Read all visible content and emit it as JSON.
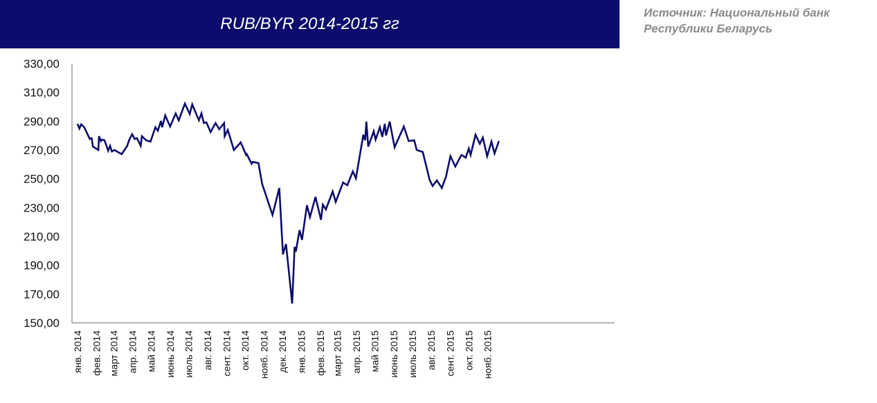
{
  "chart_data": {
    "type": "line",
    "title": "RUB/BYR 2014-2015 гг",
    "source": "Источник: Национальный банк Республики Беларусь",
    "xlabel": "",
    "ylabel": "",
    "ylim": [
      150,
      330
    ],
    "yticks": [
      "150,00",
      "170,00",
      "190,00",
      "210,00",
      "230,00",
      "250,00",
      "270,00",
      "290,00",
      "310,00",
      "330,00"
    ],
    "xticks": [
      {
        "date": "2014-01-01",
        "label": "янв. 2014"
      },
      {
        "date": "2014-02-01",
        "label": "фев. 2014"
      },
      {
        "date": "2014-03-01",
        "label": "март 2014"
      },
      {
        "date": "2014-04-01",
        "label": "апр. 2014"
      },
      {
        "date": "2014-05-01",
        "label": "май 2014"
      },
      {
        "date": "2014-06-01",
        "label": "июнь 2014"
      },
      {
        "date": "2014-07-01",
        "label": "июль 2014"
      },
      {
        "date": "2014-08-01",
        "label": "авг. 2014"
      },
      {
        "date": "2014-09-01",
        "label": "сент. 2014"
      },
      {
        "date": "2014-10-01",
        "label": "окт. 2014"
      },
      {
        "date": "2014-11-01",
        "label": "нояб. 2014"
      },
      {
        "date": "2014-12-01",
        "label": "дек. 2014"
      },
      {
        "date": "2015-01-01",
        "label": "янв. 2015"
      },
      {
        "date": "2015-02-01",
        "label": "фев. 2015"
      },
      {
        "date": "2015-03-01",
        "label": "март 2015"
      },
      {
        "date": "2015-04-01",
        "label": "апр. 2015"
      },
      {
        "date": "2015-05-01",
        "label": "май 2015"
      },
      {
        "date": "2015-06-01",
        "label": "июнь 2015"
      },
      {
        "date": "2015-07-01",
        "label": "июль 2015"
      },
      {
        "date": "2015-08-01",
        "label": "авг. 2015"
      },
      {
        "date": "2015-09-01",
        "label": "сент. 2015"
      },
      {
        "date": "2015-10-01",
        "label": "окт. 2015"
      },
      {
        "date": "2015-11-01",
        "label": "нояб. 2015"
      }
    ],
    "grid": false,
    "legend": "none",
    "colors": {
      "line": "#0c0c6c",
      "title_bg": "#0c0c6c",
      "source_text": "#8a8a8a"
    },
    "series": [
      {
        "points": [
          [
            "2014-01-01",
            288.2
          ],
          [
            "2014-01-04",
            284.9
          ],
          [
            "2014-01-07",
            287.8
          ],
          [
            "2014-01-12",
            285.8
          ],
          [
            "2014-01-21",
            277.7
          ],
          [
            "2014-01-24",
            278.2
          ],
          [
            "2014-01-26",
            272.4
          ],
          [
            "2014-02-04",
            270.0
          ],
          [
            "2014-02-05",
            279.6
          ],
          [
            "2014-02-08",
            276.2
          ],
          [
            "2014-02-10",
            277.2
          ],
          [
            "2014-02-14",
            276.7
          ],
          [
            "2014-02-20",
            269.5
          ],
          [
            "2014-02-23",
            272.9
          ],
          [
            "2014-02-26",
            269.0
          ],
          [
            "2014-03-02",
            270.0
          ],
          [
            "2014-03-14",
            267.1
          ],
          [
            "2014-03-23",
            272.9
          ],
          [
            "2014-03-26",
            276.7
          ],
          [
            "2014-03-31",
            281.0
          ],
          [
            "2014-04-04",
            277.7
          ],
          [
            "2014-04-08",
            278.2
          ],
          [
            "2014-04-14",
            272.9
          ],
          [
            "2014-04-16",
            279.6
          ],
          [
            "2014-04-23",
            276.7
          ],
          [
            "2014-04-30",
            275.8
          ],
          [
            "2014-05-08",
            285.8
          ],
          [
            "2014-05-12",
            283.4
          ],
          [
            "2014-05-17",
            290.2
          ],
          [
            "2014-05-19",
            285.8
          ],
          [
            "2014-05-24",
            294.0
          ],
          [
            "2014-06-01",
            286.3
          ],
          [
            "2014-06-10",
            295.4
          ],
          [
            "2014-06-15",
            290.6
          ],
          [
            "2014-06-25",
            302.2
          ],
          [
            "2014-07-03",
            295.0
          ],
          [
            "2014-07-07",
            301.7
          ],
          [
            "2014-07-18",
            290.6
          ],
          [
            "2014-07-22",
            295.4
          ],
          [
            "2014-07-26",
            288.7
          ],
          [
            "2014-07-30",
            289.2
          ],
          [
            "2014-08-06",
            282.5
          ],
          [
            "2014-08-14",
            288.7
          ],
          [
            "2014-08-20",
            284.4
          ],
          [
            "2014-08-28",
            288.7
          ],
          [
            "2014-08-29",
            279.6
          ],
          [
            "2014-09-03",
            283.9
          ],
          [
            "2014-09-13",
            270.0
          ],
          [
            "2014-09-24",
            275.3
          ],
          [
            "2014-10-03",
            266.6
          ],
          [
            "2014-10-04",
            267.1
          ],
          [
            "2014-10-12",
            260.4
          ],
          [
            "2014-10-14",
            261.8
          ],
          [
            "2014-10-23",
            260.9
          ],
          [
            "2014-10-29",
            246.5
          ],
          [
            "2014-11-15",
            224.9
          ],
          [
            "2014-11-26",
            243.6
          ],
          [
            "2014-12-02",
            197.5
          ],
          [
            "2014-12-07",
            204.7
          ],
          [
            "2014-12-17",
            163.4
          ],
          [
            "2014-12-21",
            202.8
          ],
          [
            "2014-12-23",
            199.4
          ],
          [
            "2014-12-29",
            214.3
          ],
          [
            "2015-01-02",
            207.6
          ],
          [
            "2015-01-10",
            231.6
          ],
          [
            "2015-01-15",
            223.4
          ],
          [
            "2015-01-24",
            237.4
          ],
          [
            "2015-02-02",
            221.5
          ],
          [
            "2015-02-05",
            232.1
          ],
          [
            "2015-02-10",
            228.7
          ],
          [
            "2015-02-21",
            241.2
          ],
          [
            "2015-02-26",
            234.0
          ],
          [
            "2015-03-10",
            247.4
          ],
          [
            "2015-03-17",
            245.5
          ],
          [
            "2015-03-26",
            255.1
          ],
          [
            "2015-03-31",
            250.3
          ],
          [
            "2015-04-12",
            280.6
          ],
          [
            "2015-04-15",
            276.7
          ],
          [
            "2015-04-17",
            289.7
          ],
          [
            "2015-04-20",
            272.4
          ],
          [
            "2015-04-29",
            283.0
          ],
          [
            "2015-05-02",
            277.2
          ],
          [
            "2015-05-09",
            285.8
          ],
          [
            "2015-05-13",
            279.1
          ],
          [
            "2015-05-17",
            288.2
          ],
          [
            "2015-05-19",
            280.1
          ],
          [
            "2015-05-25",
            289.7
          ],
          [
            "2015-06-02",
            271.9
          ],
          [
            "2015-06-17",
            286.3
          ],
          [
            "2015-06-25",
            276.2
          ],
          [
            "2015-07-04",
            276.7
          ],
          [
            "2015-07-08",
            270.0
          ],
          [
            "2015-07-18",
            268.6
          ],
          [
            "2015-07-29",
            249.4
          ],
          [
            "2015-08-03",
            245.0
          ],
          [
            "2015-08-10",
            248.9
          ],
          [
            "2015-08-18",
            243.6
          ],
          [
            "2015-08-25",
            251.8
          ],
          [
            "2015-09-01",
            265.7
          ],
          [
            "2015-09-09",
            258.5
          ],
          [
            "2015-09-19",
            266.6
          ],
          [
            "2015-09-26",
            264.7
          ],
          [
            "2015-10-01",
            271.0
          ],
          [
            "2015-10-04",
            266.6
          ],
          [
            "2015-10-12",
            280.6
          ],
          [
            "2015-10-19",
            274.3
          ],
          [
            "2015-10-24",
            278.6
          ],
          [
            "2015-10-31",
            265.7
          ],
          [
            "2015-11-07",
            275.8
          ],
          [
            "2015-11-12",
            267.6
          ],
          [
            "2015-11-19",
            276.2
          ]
        ]
      }
    ]
  }
}
